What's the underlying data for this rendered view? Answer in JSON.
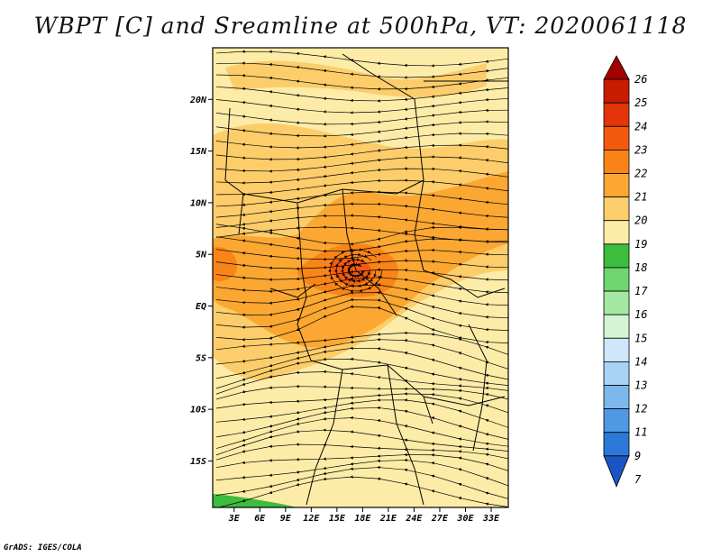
{
  "title": "WBPT [C] and Sreamline at 500hPa, VT: 2020061118",
  "credit": "GrADS: IGES/COLA",
  "map": {
    "lat_labels": [
      "20N",
      "15N",
      "10N",
      "5N",
      "EQ",
      "5S",
      "10S",
      "15S"
    ],
    "lat_values": [
      20,
      15,
      10,
      5,
      0,
      -5,
      -10,
      -15
    ],
    "lon_labels": [
      "3E",
      "6E",
      "9E",
      "12E",
      "15E",
      "18E",
      "21E",
      "24E",
      "27E",
      "30E",
      "33E"
    ],
    "lon_values": [
      3,
      6,
      9,
      12,
      15,
      18,
      21,
      24,
      27,
      30,
      33
    ],
    "lon_range": [
      0.5,
      35
    ],
    "lat_range": [
      -19.5,
      25
    ],
    "field_range_c": [
      18,
      22
    ],
    "dominant_level_c": "19-20",
    "warm_core": {
      "lon": 16,
      "lat": 3.5,
      "level_c": "22-23"
    }
  },
  "colorbar": {
    "levels": [
      "26",
      "25",
      "24",
      "23",
      "22",
      "21",
      "20",
      "19",
      "18",
      "17",
      "16",
      "15",
      "14",
      "13",
      "12",
      "11",
      "9",
      "7"
    ],
    "colors": [
      "#a50000",
      "#c81c00",
      "#e3340a",
      "#f35a10",
      "#f98418",
      "#fba732",
      "#fccd6a",
      "#fdeca8",
      "#3dbc3d",
      "#6ed66e",
      "#a4e8a4",
      "#d4f5d4",
      "#cfe7fb",
      "#a9d3f6",
      "#7cb8ee",
      "#4f98e4",
      "#2c78d8",
      "#1a55c6"
    ]
  }
}
